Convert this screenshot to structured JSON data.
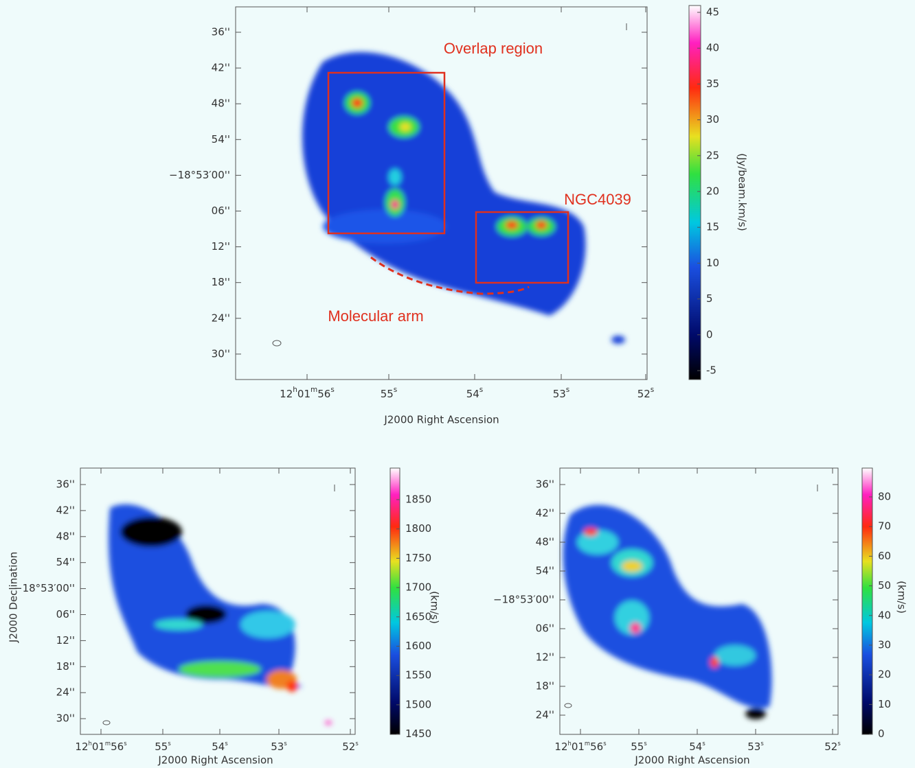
{
  "panels": [
    {
      "y_tick_labels": [
        "36''",
        "42''",
        "48''",
        "54''",
        "−18°53′00''",
        "06''",
        "12''",
        "18''",
        "24''",
        "30''"
      ],
      "x_tick_labels": [
        "12h01m56s",
        "55s",
        "54s",
        "53s",
        "52s"
      ],
      "x_label": "J2000 Right Ascension",
      "colorbar_ticks": [
        45,
        40,
        35,
        30,
        25,
        20,
        15,
        10,
        5,
        0,
        -5
      ],
      "colorbar_label": "(Jy/beam.km/s)",
      "annotations": [
        "Overlap region",
        "NGC4039",
        "Molecular arm"
      ]
    },
    {
      "y_tick_labels": [
        "36''",
        "42''",
        "48''",
        "54''",
        "−18°53′00''",
        "06''",
        "12''",
        "18''",
        "24''",
        "30''"
      ],
      "x_tick_labels": [
        "12h01m56s",
        "55s",
        "54s",
        "53s",
        "52s"
      ],
      "x_label": "J2000 Right Ascension",
      "y_label": "J2000 Declination",
      "colorbar_ticks": [
        1850,
        1800,
        1750,
        1700,
        1650,
        1600,
        1550,
        1500,
        1450
      ],
      "colorbar_label": "(km/s)"
    },
    {
      "y_tick_labels": [
        "36''",
        "42''",
        "48''",
        "54''",
        "−18°53′00''",
        "06''",
        "12''",
        "18''",
        "24''"
      ],
      "x_tick_labels": [
        "12h01m56s",
        "55s",
        "54s",
        "53s",
        "52s"
      ],
      "x_label": "J2000 Right Ascension",
      "colorbar_ticks": [
        80,
        70,
        60,
        50,
        40,
        30,
        20,
        10,
        0
      ],
      "colorbar_label": "(km/s)"
    }
  ]
}
